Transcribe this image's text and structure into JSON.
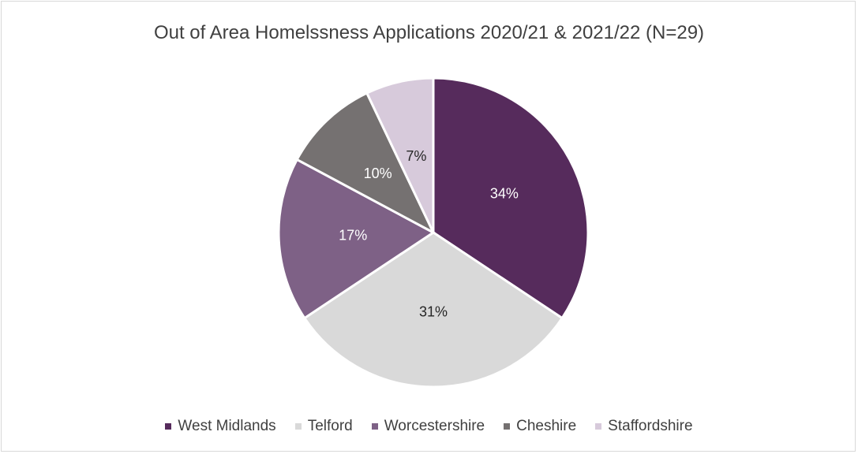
{
  "chart_data": {
    "type": "pie",
    "title": "Out of Area Homelssness Applications 2020/21 & 2021/22 (N=29)",
    "categories": [
      "West Midlands",
      "Telford",
      "Worcestershire",
      "Cheshire",
      "Staffordshire"
    ],
    "values": [
      34,
      31,
      17,
      10,
      7
    ],
    "labels": [
      "34%",
      "31%",
      "17%",
      "10%",
      "7%"
    ],
    "colors": [
      "#562b5c",
      "#d9d9d9",
      "#7e6186",
      "#757171",
      "#d7cadb"
    ],
    "label_colors": [
      "#ffffff",
      "#262626",
      "#ffffff",
      "#ffffff",
      "#262626"
    ],
    "legend_position": "bottom"
  }
}
